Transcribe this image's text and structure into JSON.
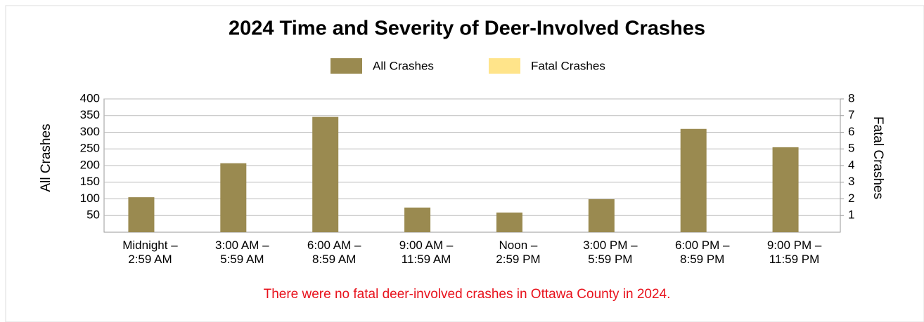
{
  "chart_data": {
    "type": "bar",
    "title": "2024 Time and Severity of Deer-Involved Crashes",
    "categories": [
      "Midnight –\n2:59 AM",
      "3:00 AM –\n5:59 AM",
      "6:00 AM –\n8:59 AM",
      "9:00 AM –\n11:59 AM",
      "Noon –\n2:59 PM",
      "3:00 PM –\n5:59 PM",
      "6:00 PM –\n8:59 PM",
      "9:00 PM –\n11:59 PM"
    ],
    "series": [
      {
        "name": "All Crashes",
        "color": "#9a8a50",
        "values": [
          105,
          207,
          346,
          74,
          59,
          99,
          310,
          255
        ]
      },
      {
        "name": "Fatal Crashes",
        "color": "#ffe48a",
        "axis": "y2",
        "values": [
          0,
          0,
          0,
          0,
          0,
          0,
          0,
          0
        ]
      }
    ],
    "ylabel": "All Crashes",
    "y2label": "Fatal Crashes",
    "ylim": [
      0,
      400
    ],
    "yticks": [
      50,
      100,
      150,
      200,
      250,
      300,
      350,
      400
    ],
    "y2lim": [
      0,
      8
    ],
    "y2ticks": [
      1,
      2,
      3,
      4,
      5,
      6,
      7,
      8
    ],
    "grid": true,
    "legend": "top",
    "annotation": "There were no fatal deer-involved crashes in Ottawa County in 2024."
  }
}
